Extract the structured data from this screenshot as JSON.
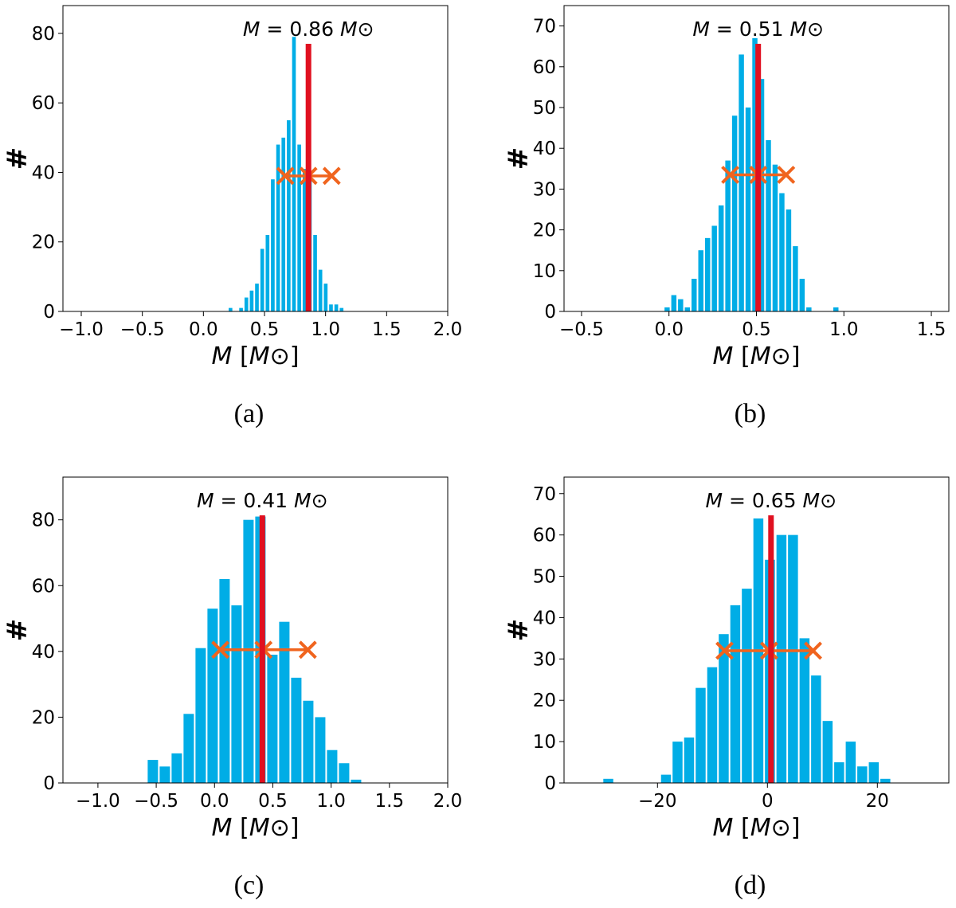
{
  "chart_data": [
    {
      "type": "bar",
      "caption": "(a)",
      "annotation": "M = 0.86 M⊙",
      "xlabel": "M [M⊙]",
      "ylabel": "#",
      "xlim": [
        -1.15,
        2.0
      ],
      "ylim": [
        0,
        88
      ],
      "xticks": [
        -1.0,
        -0.5,
        0.0,
        0.5,
        1.0,
        1.5,
        2.0
      ],
      "xtick_labels": [
        "−1.0",
        "−0.5",
        "0.0",
        "0.5",
        "1.0",
        "1.5",
        "2.0"
      ],
      "yticks": [
        0,
        20,
        40,
        60,
        80
      ],
      "yticks_labels": [
        "0",
        "20",
        "40",
        "60",
        "80"
      ],
      "bin_start": 0.2,
      "bin_width": 0.0433,
      "values": [
        1,
        0,
        1,
        4,
        6,
        8,
        18,
        22,
        38,
        48,
        50,
        55,
        79,
        48,
        41,
        38,
        22,
        12,
        8,
        2,
        2,
        1
      ],
      "mean": 0.86,
      "errorbar": {
        "center": 0.86,
        "low": 0.67,
        "high": 1.05,
        "y": 39
      },
      "color_bar": "#00ADE6",
      "color_mean": "#E01020",
      "color_err": "#F0641E"
    },
    {
      "type": "bar",
      "caption": "(b)",
      "annotation": "M = 0.51 M⊙",
      "xlabel": "M [M⊙]",
      "ylabel": "#",
      "xlim": [
        -0.6,
        1.6
      ],
      "ylim": [
        0,
        75
      ],
      "xticks": [
        -0.5,
        0.0,
        0.5,
        1.0,
        1.5
      ],
      "xtick_labels": [
        "−0.5",
        "0.0",
        "0.5",
        "1.0",
        "1.5"
      ],
      "yticks": [
        0,
        10,
        20,
        30,
        40,
        50,
        60,
        70
      ],
      "yticks_labels": [
        "0",
        "10",
        "20",
        "30",
        "40",
        "50",
        "60",
        "70"
      ],
      "bin_start": -0.03,
      "bin_width": 0.0386,
      "values": [
        1,
        4,
        3,
        1,
        8,
        15,
        18,
        21,
        26,
        37,
        48,
        63,
        50,
        67,
        57,
        42,
        36,
        29,
        25,
        16,
        8,
        1,
        0,
        0,
        0,
        1
      ],
      "mean": 0.51,
      "errorbar": {
        "center": 0.51,
        "low": 0.35,
        "high": 0.67,
        "y": 33.5
      },
      "color_bar": "#00ADE6",
      "color_mean": "#E01020",
      "color_err": "#F0641E"
    },
    {
      "type": "bar",
      "caption": "(c)",
      "annotation": "M = 0.41 M⊙",
      "xlabel": "M [M⊙]",
      "ylabel": "#",
      "xlim": [
        -1.3,
        2.0
      ],
      "ylim": [
        0,
        93
      ],
      "xticks": [
        -1.0,
        -0.5,
        0.0,
        0.5,
        1.0,
        1.5,
        2.0
      ],
      "xtick_labels": [
        "−1.0",
        "−0.5",
        "0.0",
        "0.5",
        "1.0",
        "1.5",
        "2.0"
      ],
      "yticks": [
        0,
        20,
        40,
        60,
        80
      ],
      "yticks_labels": [
        "0",
        "20",
        "40",
        "60",
        "80"
      ],
      "bin_start": -0.58,
      "bin_width": 0.1025,
      "values": [
        7,
        5,
        9,
        21,
        41,
        53,
        62,
        54,
        80,
        81,
        39,
        49,
        32,
        25,
        20,
        10,
        6,
        1
      ],
      "mean": 0.41,
      "errorbar": {
        "center": 0.42,
        "low": 0.05,
        "high": 0.8,
        "y": 40.5
      },
      "color_bar": "#00ADE6",
      "color_mean": "#E01020",
      "color_err": "#F0641E"
    },
    {
      "type": "bar",
      "caption": "(d)",
      "annotation": "M = 0.65 M⊙",
      "xlabel": "M [M⊙]",
      "ylabel": "#",
      "xlim": [
        -37,
        33
      ],
      "ylim": [
        0,
        74
      ],
      "xticks": [
        -20,
        0,
        20
      ],
      "xtick_labels": [
        "−20",
        "0",
        "20"
      ],
      "yticks": [
        0,
        10,
        20,
        30,
        40,
        50,
        60,
        70
      ],
      "yticks_labels": [
        "0",
        "10",
        "20",
        "30",
        "40",
        "50",
        "60",
        "70"
      ],
      "bin_start": -30,
      "bin_width": 2.1,
      "values": [
        1,
        0,
        0,
        0,
        0,
        2,
        10,
        11,
        23,
        28,
        36,
        43,
        47,
        64,
        54,
        60,
        60,
        35,
        26,
        15,
        5,
        10,
        4,
        5,
        1
      ],
      "mean": 0.65,
      "errorbar": {
        "center": 0.3,
        "low": -7.8,
        "high": 8.3,
        "y": 32
      },
      "color_bar": "#00ADE6",
      "color_mean": "#E01020",
      "color_err": "#F0641E"
    }
  ]
}
